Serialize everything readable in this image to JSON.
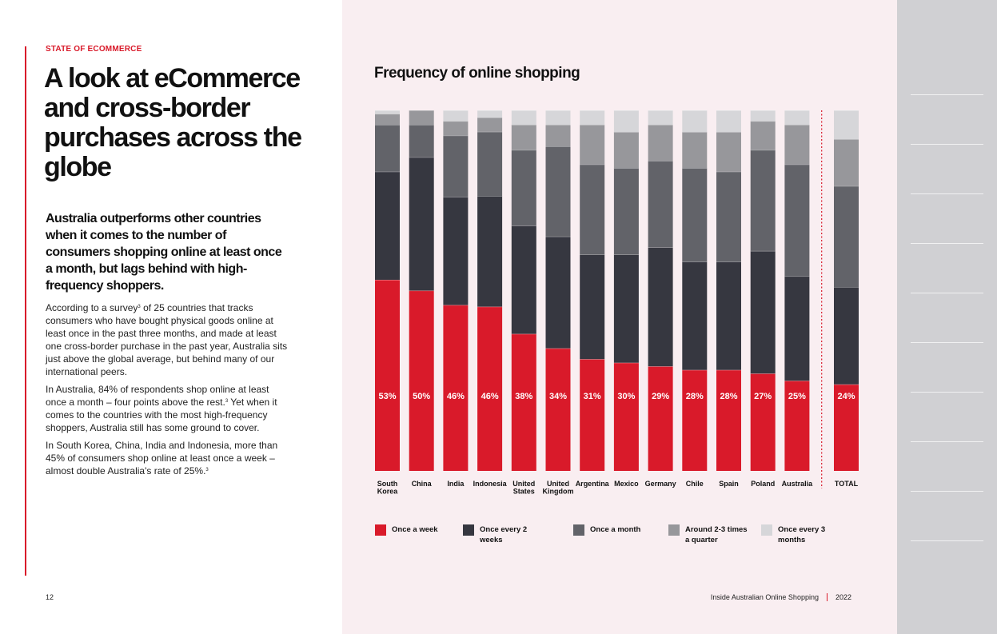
{
  "section_label": "STATE OF ECOMMERCE",
  "title": "A look at eCommerce and cross-border purchases across the globe",
  "subheading": "Australia outperforms other countries when it comes to the number of consumers shopping online at least once a month, but lags behind with high-frequency shoppers.",
  "body": {
    "p1_before": "According to a survey",
    "p1_sup": "3",
    "p1_after": " of 25 countries that tracks consumers who have bought physical goods online at least once in the past three months, and made at least one cross-border purchase in the past year, Australia sits just above the global average, but behind many of our international peers.",
    "p2_before": "In Australia, 84% of respondents shop online at least once a month – four points above the rest.",
    "p2_sup": "3",
    "p2_after": " Yet when it comes to the countries with the most high-frequency shoppers, Australia still has some ground to cover.",
    "p3_before": "In South Korea, China, India and Indonesia, more than 45% of consumers shop online at least once a week – almost double Australia's rate of 25%.",
    "p3_sup": "3"
  },
  "page_number": "12",
  "footer": {
    "publication": "Inside Australian Online Shopping",
    "year": "2022"
  },
  "colors": {
    "accent_red": "#d91a2a",
    "once_a_week": "#d91a2a",
    "once_every_2_weeks": "#363740",
    "once_a_month": "#626369",
    "around_2_3_quarter": "#97979b",
    "once_every_3_months": "#d6d6d9"
  },
  "chart_data": {
    "type": "bar",
    "stacked": true,
    "orientation": "vertical",
    "title": "Frequency of online shopping",
    "ylim": [
      0,
      100
    ],
    "unit": "%",
    "grid": false,
    "categories": [
      [
        "South",
        "Korea"
      ],
      [
        "China"
      ],
      [
        "India"
      ],
      [
        "Indonesia"
      ],
      [
        "United",
        "States"
      ],
      [
        "United",
        "Kingdom"
      ],
      [
        "Argentina"
      ],
      [
        "Mexico"
      ],
      [
        "Germany"
      ],
      [
        "Chile"
      ],
      [
        "Spain"
      ],
      [
        "Poland"
      ],
      [
        "Australia"
      ],
      [
        "TOTAL"
      ]
    ],
    "separator_before_last": true,
    "series": [
      {
        "name": "Once a week",
        "color": "#d91a2a",
        "values": [
          53,
          50,
          46,
          46,
          38,
          34,
          31,
          30,
          29,
          28,
          28,
          27,
          25,
          24
        ],
        "labeled": true
      },
      {
        "name": "Once every 2 weeks",
        "color": "#363740",
        "values": [
          30,
          37,
          30,
          31,
          30,
          31,
          29,
          30,
          33,
          30,
          30,
          34,
          29,
          27
        ]
      },
      {
        "name": "Once a month",
        "color": "#626369",
        "values": [
          13,
          9,
          17,
          18,
          21,
          25,
          25,
          24,
          24,
          26,
          25,
          28,
          31,
          28
        ]
      },
      {
        "name": "Around 2-3 times a quarter",
        "color": "#97979b",
        "values": [
          3,
          4,
          4,
          4,
          7,
          6,
          11,
          10,
          10,
          10,
          11,
          8,
          11,
          13
        ]
      },
      {
        "name": "Once every 3 months",
        "color": "#d6d6d9",
        "values": [
          1,
          0,
          3,
          2,
          4,
          4,
          4,
          6,
          4,
          6,
          6,
          3,
          4,
          8
        ]
      }
    ],
    "legend": [
      {
        "label": "Once a week",
        "color": "#d91a2a"
      },
      {
        "label": "Once every 2 weeks",
        "color": "#363740"
      },
      {
        "label": "Once a month",
        "color": "#626369"
      },
      {
        "label": "Around 2-3 times a quarter",
        "color": "#97979b"
      },
      {
        "label": "Once every 3 months",
        "color": "#d6d6d9"
      }
    ],
    "legend_position": "bottom"
  }
}
